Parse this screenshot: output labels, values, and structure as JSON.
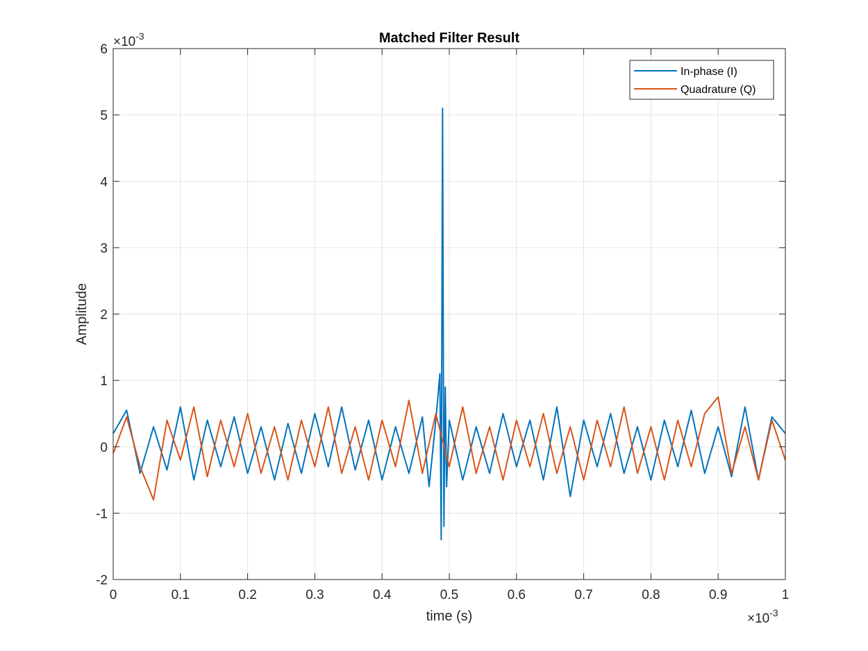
{
  "chart_data": {
    "type": "line",
    "title": "Matched Filter Result",
    "xlabel": "time (s)",
    "ylabel": "Amplitude",
    "xlim": [
      0,
      0.001
    ],
    "ylim": [
      -0.002,
      0.006
    ],
    "x_ticks": [
      0,
      0.0001,
      0.0002,
      0.0003,
      0.0004,
      0.0005,
      0.0006,
      0.0007,
      0.0008,
      0.0009,
      0.001
    ],
    "x_tick_labels": [
      "0",
      "0.1",
      "0.2",
      "0.3",
      "0.4",
      "0.5",
      "0.6",
      "0.7",
      "0.8",
      "0.9",
      "1"
    ],
    "y_ticks": [
      -0.002,
      -0.001,
      0,
      0.001,
      0.002,
      0.003,
      0.004,
      0.005,
      0.006
    ],
    "y_tick_labels": [
      "-2",
      "-1",
      "0",
      "1",
      "2",
      "3",
      "4",
      "5",
      "6"
    ],
    "x_exponent_label": "×10",
    "x_exponent_power": "-3",
    "y_exponent_label": "×10",
    "y_exponent_power": "-3",
    "grid": true,
    "legend_position": "top-right",
    "series": [
      {
        "name": "In-phase (I)",
        "color": "#0072BD",
        "x": [
          0,
          2e-05,
          4e-05,
          6e-05,
          8e-05,
          0.0001,
          0.00012,
          0.00014,
          0.00016,
          0.00018,
          0.0002,
          0.00022,
          0.00024,
          0.00026,
          0.00028,
          0.0003,
          0.00032,
          0.00034,
          0.00036,
          0.00038,
          0.0004,
          0.00042,
          0.00044,
          0.00046,
          0.00047,
          0.00048,
          0.000486,
          0.000488,
          0.00049,
          0.000492,
          0.000494,
          0.000496,
          0.0005,
          0.00052,
          0.00054,
          0.00056,
          0.00058,
          0.0006,
          0.00062,
          0.00064,
          0.00066,
          0.00068,
          0.0007,
          0.00072,
          0.00074,
          0.00076,
          0.00078,
          0.0008,
          0.00082,
          0.00084,
          0.00086,
          0.00088,
          0.0009,
          0.00092,
          0.00094,
          0.00096,
          0.00098,
          0.001
        ],
        "values": [
          0.0002,
          0.00055,
          -0.0004,
          0.0003,
          -0.00035,
          0.0006,
          -0.0005,
          0.0004,
          -0.0003,
          0.00045,
          -0.0004,
          0.0003,
          -0.0005,
          0.00035,
          -0.0004,
          0.0005,
          -0.0003,
          0.0006,
          -0.00035,
          0.0004,
          -0.0005,
          0.0003,
          -0.0004,
          0.00045,
          -0.0006,
          0.0004,
          0.0011,
          -0.0014,
          0.0051,
          -0.0012,
          0.0009,
          -0.0006,
          0.0004,
          -0.0005,
          0.0003,
          -0.0004,
          0.0005,
          -0.0003,
          0.0004,
          -0.0005,
          0.0006,
          -0.00075,
          0.0004,
          -0.0003,
          0.0005,
          -0.0004,
          0.0003,
          -0.0005,
          0.0004,
          -0.0003,
          0.00055,
          -0.0004,
          0.0003,
          -0.00045,
          0.0006,
          -0.0005,
          0.00045,
          0.0002
        ]
      },
      {
        "name": "Quadrature (Q)",
        "color": "#D95319",
        "x": [
          0,
          2e-05,
          4e-05,
          6e-05,
          8e-05,
          0.0001,
          0.00012,
          0.00014,
          0.00016,
          0.00018,
          0.0002,
          0.00022,
          0.00024,
          0.00026,
          0.00028,
          0.0003,
          0.00032,
          0.00034,
          0.00036,
          0.00038,
          0.0004,
          0.00042,
          0.00044,
          0.00046,
          0.00048,
          0.0005,
          0.00052,
          0.00054,
          0.00056,
          0.00058,
          0.0006,
          0.00062,
          0.00064,
          0.00066,
          0.00068,
          0.0007,
          0.00072,
          0.00074,
          0.00076,
          0.00078,
          0.0008,
          0.00082,
          0.00084,
          0.00086,
          0.00088,
          0.0009,
          0.00092,
          0.00094,
          0.00096,
          0.00098,
          0.001
        ],
        "values": [
          -0.0001,
          0.00045,
          -0.0003,
          -0.0008,
          0.0004,
          -0.0002,
          0.0006,
          -0.00045,
          0.0004,
          -0.0003,
          0.0005,
          -0.0004,
          0.0003,
          -0.0005,
          0.0004,
          -0.0003,
          0.0006,
          -0.0004,
          0.0003,
          -0.0005,
          0.0004,
          -0.0003,
          0.0007,
          -0.0004,
          0.0005,
          -0.0003,
          0.0006,
          -0.0004,
          0.0003,
          -0.0005,
          0.0004,
          -0.0003,
          0.0005,
          -0.0004,
          0.0003,
          -0.0005,
          0.0004,
          -0.0003,
          0.0006,
          -0.0004,
          0.0003,
          -0.0005,
          0.0004,
          -0.0003,
          0.0005,
          0.00075,
          -0.0004,
          0.0003,
          -0.0005,
          0.0004,
          -0.0002
        ]
      }
    ]
  }
}
